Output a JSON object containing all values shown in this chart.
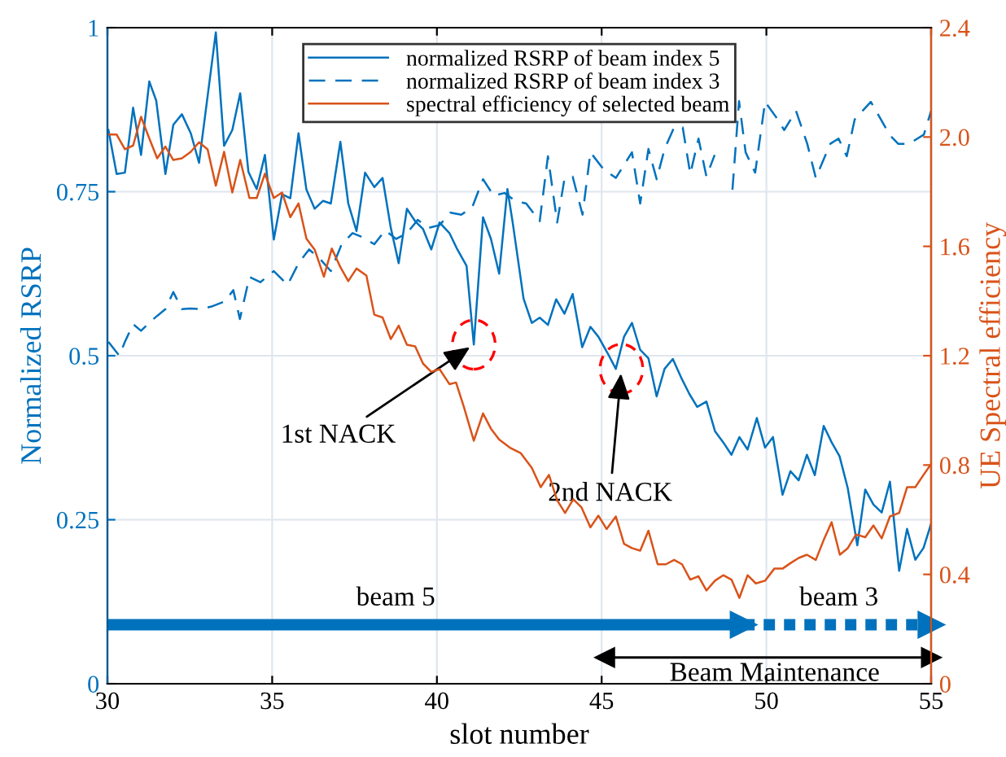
{
  "chart_data": {
    "type": "line",
    "xlabel": "slot number",
    "ylabel": "Normalized RSRP",
    "y2label": "UE Spectral efficiency",
    "xlim": [
      30,
      55
    ],
    "xticks": [
      30,
      35,
      40,
      45,
      50,
      55
    ],
    "ylim": [
      0,
      1
    ],
    "yticks": [
      0,
      0.25,
      0.5,
      0.75,
      1
    ],
    "y2lim": [
      0,
      2.4
    ],
    "y2ticks": [
      0,
      0.4,
      0.8,
      1.2,
      1.6,
      {
        "value": 2,
        "label": "2.0"
      },
      2.4
    ],
    "grid": true,
    "legend": "top",
    "marker": "none",
    "series": [
      {
        "name": "normalized RSRP of beam index 5",
        "color": "#0072bd",
        "line_style": "solid",
        "x": [
          30.03,
          30.28,
          30.53,
          30.78,
          31.02,
          31.27,
          31.48,
          31.76,
          32.0,
          32.26,
          32.53,
          32.78,
          33.29,
          33.54,
          33.79,
          34.03,
          34.28,
          34.53,
          34.78,
          35.05,
          35.3,
          35.55,
          35.8,
          36.04,
          36.29,
          36.54,
          36.78,
          37.07,
          37.31,
          37.56,
          37.82,
          38.1,
          38.35,
          38.6,
          38.84,
          39.09,
          39.34,
          39.58,
          39.83,
          40.08,
          40.38,
          40.62,
          40.9,
          41.12,
          41.4,
          41.64,
          41.89,
          42.14,
          42.3,
          42.63,
          42.88,
          43.12,
          43.37,
          43.62,
          43.87,
          44.12,
          44.41,
          44.66,
          44.9,
          45.18,
          45.43,
          45.68,
          45.92,
          46.17,
          46.42,
          46.67,
          46.91,
          47.16,
          47.41,
          47.66,
          47.9,
          48.18,
          48.44,
          48.69,
          48.94,
          49.18,
          49.43,
          49.71,
          49.96,
          50.2,
          50.49,
          50.73,
          50.98,
          51.23,
          51.47,
          51.74,
          51.98,
          52.22,
          52.47,
          52.76,
          53.0,
          53.25,
          53.5,
          53.75,
          54.03,
          54.27,
          54.52,
          54.77,
          55.0
        ],
        "values": [
          0.844,
          0.777,
          0.779,
          0.878,
          0.806,
          0.918,
          0.889,
          0.777,
          0.852,
          0.868,
          0.839,
          0.794,
          0.993,
          0.82,
          0.844,
          0.9,
          0.78,
          0.754,
          0.806,
          0.677,
          0.746,
          0.74,
          0.839,
          0.753,
          0.724,
          0.736,
          0.732,
          0.826,
          0.732,
          0.69,
          0.779,
          0.757,
          0.771,
          0.695,
          0.641,
          0.724,
          0.705,
          0.693,
          0.662,
          0.703,
          0.687,
          0.662,
          0.637,
          0.517,
          0.711,
          0.678,
          0.625,
          0.754,
          0.703,
          0.587,
          0.55,
          0.558,
          0.547,
          0.586,
          0.564,
          0.594,
          0.513,
          0.544,
          0.529,
          0.504,
          0.48,
          0.529,
          0.55,
          0.509,
          0.496,
          0.438,
          0.48,
          0.495,
          0.467,
          0.442,
          0.422,
          0.43,
          0.385,
          0.368,
          0.349,
          0.376,
          0.357,
          0.405,
          0.36,
          0.376,
          0.288,
          0.324,
          0.31,
          0.349,
          0.318,
          0.393,
          0.368,
          0.347,
          0.298,
          0.211,
          0.296,
          0.273,
          0.261,
          0.308,
          0.172,
          0.236,
          0.189,
          0.207,
          0.244
        ]
      },
      {
        "name": "normalized RSRP of beam index 3",
        "color": "#0072bd",
        "line_style": "dashed",
        "x": [
          30.03,
          30.36,
          30.53,
          30.78,
          31.02,
          31.35,
          31.76,
          32.0,
          32.26,
          32.51,
          32.83,
          33.16,
          33.57,
          33.82,
          34.02,
          34.31,
          34.64,
          35.05,
          35.47,
          35.8,
          36.12,
          36.46,
          36.78,
          37.11,
          37.44,
          37.77,
          38.1,
          38.43,
          38.76,
          39.09,
          39.42,
          39.75,
          40.08,
          40.41,
          40.74,
          41.07,
          41.4,
          41.72,
          42.05,
          42.38,
          42.71,
          43.12,
          43.37,
          43.65,
          43.87,
          44.12,
          44.42,
          44.66,
          45.06,
          45.43,
          45.72,
          45.92,
          46.17,
          46.42,
          46.67,
          46.91,
          47.2,
          47.46,
          47.69,
          47.94,
          48.18,
          48.43,
          48.67,
          48.97,
          49.17,
          49.37,
          49.66,
          49.96,
          50.29,
          50.54,
          50.9,
          51.24,
          51.5,
          51.94,
          52.19,
          52.44,
          52.68,
          53.17,
          53.75,
          54.0,
          54.33,
          54.78,
          55.0
        ],
        "values": [
          0.521,
          0.5,
          0.521,
          0.548,
          0.538,
          0.554,
          0.571,
          0.597,
          0.571,
          0.572,
          0.571,
          0.575,
          0.583,
          0.6,
          0.556,
          0.62,
          0.612,
          0.629,
          0.608,
          0.641,
          0.662,
          0.647,
          0.629,
          0.67,
          0.687,
          0.68,
          0.67,
          0.691,
          0.678,
          0.687,
          0.707,
          0.695,
          0.699,
          0.718,
          0.715,
          0.726,
          0.769,
          0.744,
          0.748,
          0.736,
          0.732,
          0.705,
          0.804,
          0.703,
          0.769,
          0.773,
          0.715,
          0.81,
          0.784,
          0.771,
          0.794,
          0.81,
          0.732,
          0.815,
          0.769,
          0.815,
          0.848,
          0.848,
          0.777,
          0.831,
          0.773,
          0.806,
          null,
          0.753,
          0.888,
          0.81,
          0.779,
          0.887,
          0.864,
          0.844,
          0.873,
          0.823,
          0.771,
          0.823,
          0.831,
          0.804,
          0.86,
          0.887,
          0.836,
          0.823,
          0.823,
          0.837,
          0.873
        ]
      },
      {
        "name": "spectral efficiency of selected beam",
        "color": "#d95319",
        "line_style": "solid",
        "axis": "y2",
        "x": [
          30.03,
          30.28,
          30.53,
          30.78,
          31.02,
          31.27,
          31.51,
          31.76,
          32.0,
          32.26,
          32.53,
          32.78,
          33.04,
          33.29,
          33.54,
          33.79,
          34.03,
          34.31,
          34.53,
          34.78,
          35.05,
          35.3,
          35.55,
          35.8,
          36.04,
          36.29,
          36.57,
          36.81,
          37.07,
          37.31,
          37.56,
          37.86,
          38.1,
          38.35,
          38.6,
          38.84,
          39.09,
          39.34,
          39.58,
          39.83,
          40.08,
          40.38,
          40.58,
          40.82,
          41.12,
          41.4,
          41.64,
          41.89,
          42.21,
          42.54,
          42.88,
          43.15,
          43.4,
          43.65,
          43.89,
          44.14,
          44.39,
          44.66,
          44.9,
          45.15,
          45.43,
          45.68,
          45.92,
          46.17,
          46.42,
          46.7,
          46.95,
          47.2,
          47.44,
          47.69,
          47.94,
          48.18,
          48.44,
          48.69,
          48.94,
          49.18,
          49.43,
          49.68,
          49.96,
          50.24,
          50.49,
          50.73,
          50.98,
          51.23,
          51.5,
          51.74,
          51.98,
          52.23,
          52.47,
          52.72,
          53.0,
          53.25,
          53.5,
          53.75,
          54.03,
          54.27,
          54.52,
          54.77,
          55.0
        ],
        "values": [
          2.009,
          2.009,
          1.955,
          1.969,
          2.074,
          1.995,
          1.922,
          1.965,
          1.916,
          1.922,
          1.946,
          1.981,
          1.955,
          1.822,
          1.946,
          1.797,
          1.916,
          1.777,
          1.777,
          1.866,
          1.777,
          1.797,
          1.707,
          1.757,
          1.628,
          1.588,
          1.489,
          1.592,
          1.524,
          1.473,
          1.519,
          1.493,
          1.35,
          1.34,
          1.261,
          1.31,
          1.24,
          1.234,
          1.171,
          1.141,
          1.151,
          1.096,
          1.102,
          1.012,
          0.889,
          0.989,
          0.933,
          0.893,
          0.864,
          0.844,
          0.79,
          0.719,
          0.764,
          0.671,
          0.625,
          0.675,
          0.645,
          0.572,
          0.615,
          0.566,
          0.612,
          0.512,
          0.496,
          0.487,
          0.56,
          0.437,
          0.437,
          0.453,
          0.437,
          0.381,
          0.393,
          0.341,
          0.377,
          0.397,
          0.381,
          0.314,
          0.397,
          0.367,
          0.377,
          0.421,
          0.421,
          0.441,
          0.46,
          0.472,
          0.453,
          0.526,
          0.591,
          0.472,
          0.496,
          0.546,
          0.536,
          0.579,
          0.532,
          0.612,
          0.625,
          0.719,
          0.719,
          0.764,
          0.804
        ]
      },
      {
        "color": "#0072bd",
        "line_style": "solid",
        "marker": "triangle",
        "x": [
          30,
          49.3
        ],
        "values": [
          0.09,
          0.09
        ]
      },
      {
        "color": "#0072bd",
        "line_style": "dotted",
        "marker": "triangle",
        "x": [
          49.3,
          55
        ],
        "values": [
          0.09,
          0.09
        ]
      },
      {
        "color": "#000000",
        "line_style": "solid",
        "marker": "triangle",
        "x": [
          45.1,
          55
        ],
        "values": [
          0.04,
          0.04
        ]
      }
    ],
    "annotations": [
      {
        "text": "1st NACK",
        "x": 41.12,
        "y": 0.517
      },
      {
        "text": "2nd NACK",
        "x": 45.6,
        "y": 0.48
      },
      {
        "text": "beam 5",
        "x": 38.75,
        "y": 0.09
      },
      {
        "text": "beam 3",
        "x": 52.2,
        "y": 0.09
      },
      {
        "text": "Beam Maintenance",
        "x": 50.25,
        "y": 0.04
      }
    ]
  }
}
